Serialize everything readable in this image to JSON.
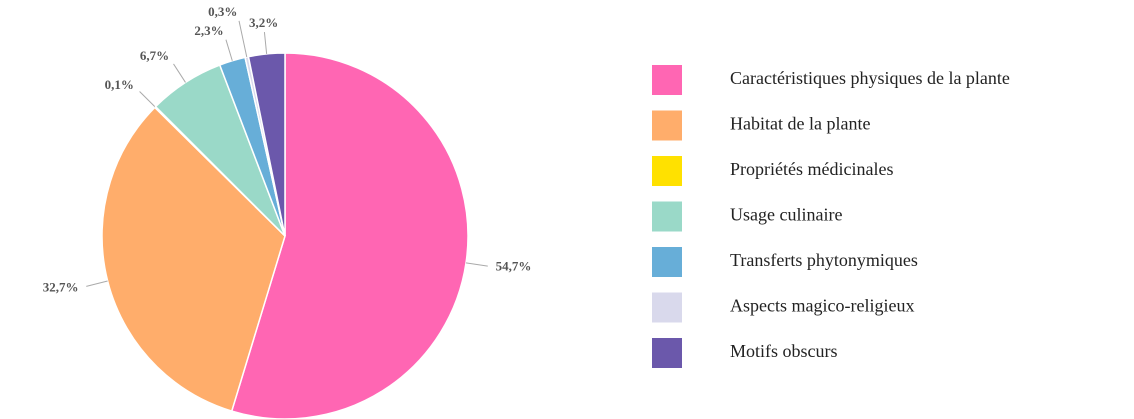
{
  "chart_data": {
    "type": "pie",
    "categories": [
      "Caractéristiques physiques de la plante",
      "Habitat de la plante",
      "Propriétés médicinales",
      "Usage culinaire",
      "Transferts phytonymiques",
      "Aspects magico-religieux",
      "Motifs obscurs"
    ],
    "values": [
      54.7,
      32.7,
      0.1,
      6.7,
      2.3,
      0.3,
      3.2
    ],
    "value_labels": [
      "54,7%",
      "32,7%",
      "0,1%",
      "6,7%",
      "2,3%",
      "0,3%",
      "3,2%"
    ],
    "colors": [
      "#ff66b3",
      "#ffad6b",
      "#ffe100",
      "#9ad9c8",
      "#67aed8",
      "#d9d9ec",
      "#6b58ab"
    ],
    "legend": "right"
  }
}
